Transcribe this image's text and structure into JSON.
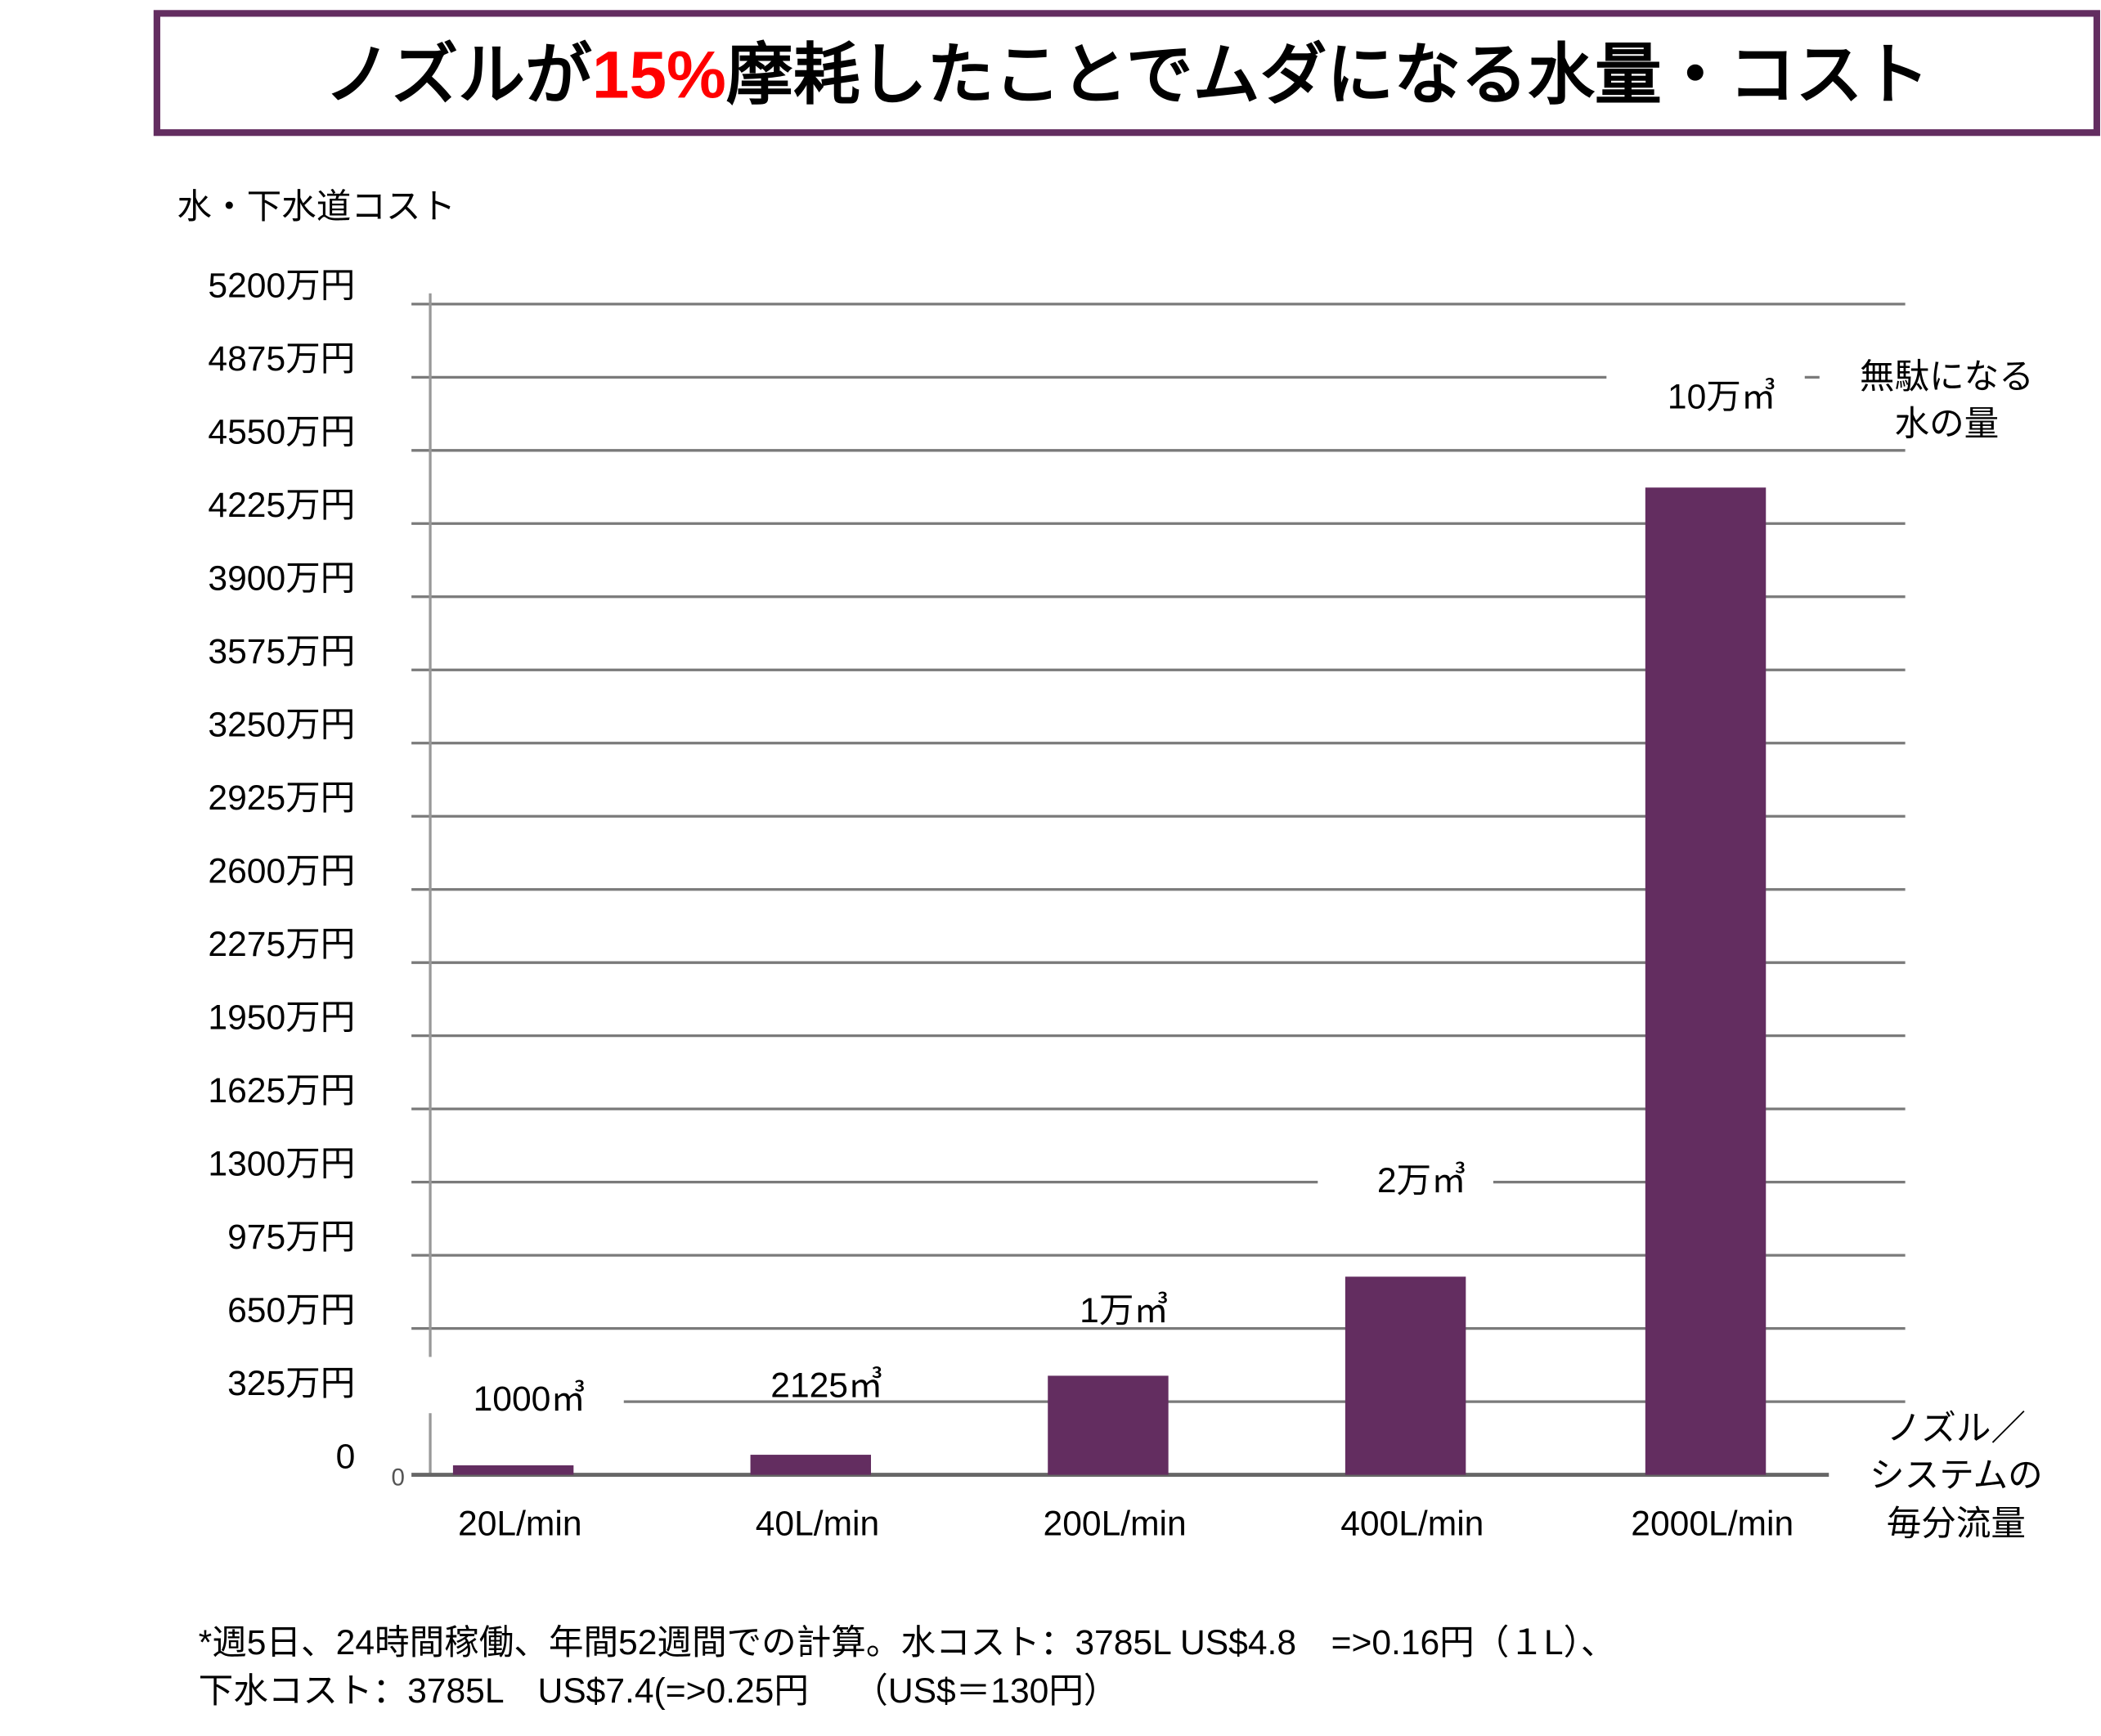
{
  "title": {
    "part1": "ノズルが",
    "highlight": "15%",
    "part2": "摩耗したことでムダになる水量・コスト"
  },
  "colors": {
    "bar": "#632d60",
    "frame": "#632d60",
    "highlight": "#ff0000",
    "grid": "#7a7a7a"
  },
  "chart_data": {
    "type": "bar",
    "title": "ノズルが15%摩耗したことでムダになる水量・コスト",
    "ylabel": "水・下水道コスト",
    "xlabel_lines": [
      "ノズル／",
      "システムの",
      "毎分流量"
    ],
    "categories": [
      "20L/min",
      "40L/min",
      "200L/min",
      "400L/min",
      "2000L/min"
    ],
    "values": [
      42,
      89,
      440,
      880,
      4385
    ],
    "value_unit": "万円",
    "data_labels": [
      "1000㎥",
      "2125㎥",
      "1万㎥",
      "2万㎥",
      "10万㎥"
    ],
    "data_label_title_lines": [
      "無駄になる",
      "水の量"
    ],
    "ylim": [
      0,
      5200
    ],
    "yticks": [
      0,
      325,
      650,
      975,
      1300,
      1625,
      1950,
      2275,
      2600,
      2925,
      3250,
      3575,
      3900,
      4225,
      4550,
      4875,
      5200
    ],
    "ytick_labels": [
      "0",
      "325万円",
      "650万円",
      "975万円",
      "1300万円",
      "1625万円",
      "1950万円",
      "2275万円",
      "2600万円",
      "2925万円",
      "3250万円",
      "3575万円",
      "3900万円",
      "4225万円",
      "4550万円",
      "4875万円",
      "5200万円"
    ],
    "origin_mark": "0",
    "grid": true
  },
  "footnote": {
    "line1": "*週5日、24時間稼働、年間52週間での計算。水コスト：3785L US$4.8　=>0.16円（１L）、",
    "line2": "下水コスト：3785L　US$7.4(=>0.25円　 （US$＝130円）"
  }
}
